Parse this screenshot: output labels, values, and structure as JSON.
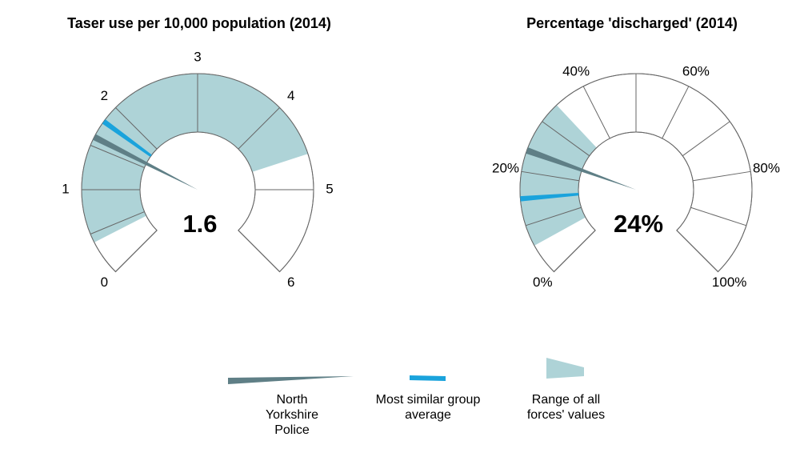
{
  "chart_data": [
    {
      "type": "gauge",
      "title": "Taser use per 10,000 population (2014)",
      "value": 1.6,
      "lim": [
        0,
        6
      ],
      "ticks": [
        0,
        1,
        2,
        3,
        4,
        5,
        6
      ],
      "minor_ticks": [
        0.5,
        1.5
      ],
      "series": [
        {
          "name": "North Yorkshire Police",
          "color": "#5f7f86",
          "values": [
            1.6
          ]
        },
        {
          "name": "Most similar group average",
          "color": "#1aa3dc",
          "values": [
            1.8
          ]
        }
      ],
      "range": {
        "name": "Range of all forces' values",
        "color": "#aed3d7",
        "values": [
          0.4,
          4.6
        ]
      }
    },
    {
      "type": "gauge",
      "title": "Percentage 'discharged' (2014)",
      "value": 24,
      "value_label": "24%",
      "lim": [
        0,
        100
      ],
      "ticks": [
        {
          "value": 0,
          "label": "0%"
        },
        {
          "value": 20,
          "label": "20%"
        },
        {
          "value": 40,
          "label": "40%"
        },
        {
          "value": 60,
          "label": "60%"
        },
        {
          "value": 80,
          "label": "80%"
        },
        {
          "value": 100,
          "label": "100%"
        }
      ],
      "minor_ticks": [
        10,
        30,
        50,
        70,
        90
      ],
      "series": [
        {
          "color": "#5f7f86",
          "values": [
            24
          ]
        },
        {
          "color": "#1aa3dc",
          "values": [
            15
          ]
        }
      ],
      "range": {
        "color": "#aed3d7",
        "values": [
          6,
          34
        ]
      }
    }
  ]
}
